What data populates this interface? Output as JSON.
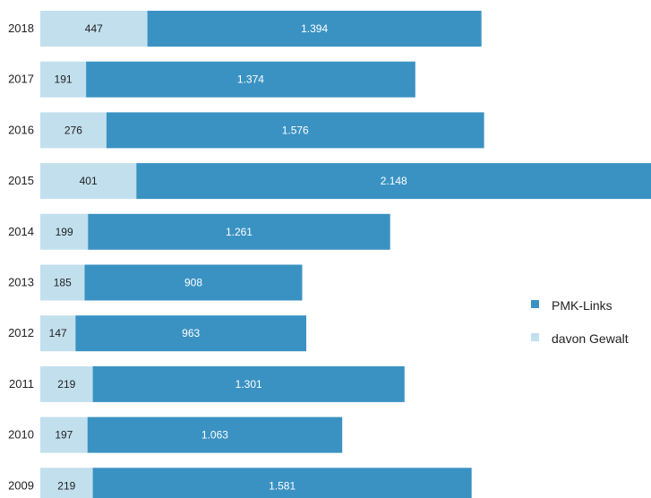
{
  "chart_data": {
    "type": "bar",
    "orientation": "horizontal",
    "stacked": true,
    "title": "",
    "xlabel": "",
    "ylabel": "",
    "categories": [
      "2018",
      "2017",
      "2016",
      "2015",
      "2014",
      "2013",
      "2012",
      "2011",
      "2010",
      "2009"
    ],
    "series": [
      {
        "name": "davon Gewalt",
        "values": [
          447,
          191,
          276,
          401,
          199,
          185,
          147,
          219,
          197,
          219
        ],
        "labels": [
          "447",
          "191",
          "276",
          "401",
          "199",
          "185",
          "147",
          "219",
          "197",
          "219"
        ],
        "color": "#c2dfee"
      },
      {
        "name": "PMK-Links",
        "values": [
          1394,
          1374,
          1576,
          2148,
          1261,
          908,
          963,
          1301,
          1063,
          1581
        ],
        "labels": [
          "1.394",
          "1.374",
          "1.576",
          "2.148",
          "1.261",
          "908",
          "963",
          "1.301",
          "1.063",
          "1.581"
        ],
        "color": "#3a92c3"
      }
    ],
    "grid": false,
    "legend_placement": "right",
    "legend": [
      {
        "label": "PMK-Links",
        "color": "#3a92c3"
      },
      {
        "label": "davon Gewalt",
        "color": "#c2dfee"
      }
    ]
  }
}
